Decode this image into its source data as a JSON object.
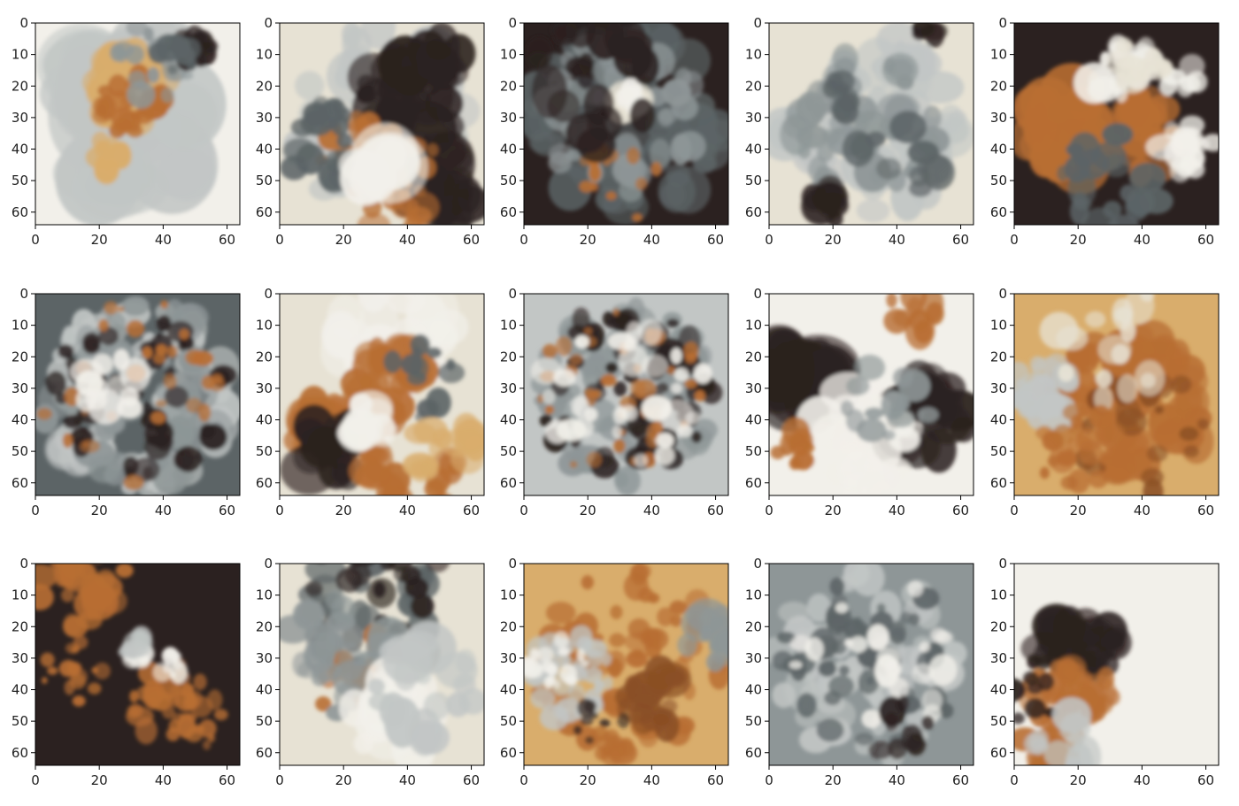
{
  "chart_data": {
    "type": "heatmap",
    "layout": {
      "rows": 3,
      "cols": 5
    },
    "axes": {
      "xlim": [
        0,
        64
      ],
      "ylim": [
        64,
        0
      ],
      "x_ticks": [
        "0",
        "20",
        "40",
        "60"
      ],
      "y_ticks": [
        "0",
        "10",
        "20",
        "30",
        "40",
        "50",
        "60"
      ]
    },
    "palette": {
      "white": "#f2f0ea",
      "cream": "#e7e2d4",
      "light_gray": "#c2c6c5",
      "gray": "#8e9697",
      "slate": "#5c6466",
      "dark": "#2b2120",
      "tan": "#d9ad6c",
      "orange": "#b86e33",
      "brown": "#8a4f25"
    },
    "panels": [
      {
        "index": 1,
        "base": "white",
        "dominant": [
          "white",
          "tan",
          "light_gray"
        ],
        "features": "orange-tan blotch upper center, dark streak top right near (50,8)"
      },
      {
        "index": 2,
        "base": "cream",
        "dominant": [
          "cream",
          "dark",
          "orange"
        ],
        "features": "large dark masses center and right, orange patches lower"
      },
      {
        "index": 3,
        "base": "dark",
        "dominant": [
          "dark",
          "slate",
          "gray"
        ],
        "features": "mostly dark, light patch near (32,25)"
      },
      {
        "index": 4,
        "base": "cream",
        "dominant": [
          "cream",
          "light_gray",
          "gray"
        ],
        "features": "gray dappled pattern, dark spots center-left"
      },
      {
        "index": 5,
        "base": "dark",
        "dominant": [
          "dark",
          "orange",
          "white"
        ],
        "features": "white band near top (25-50,15), orange fill left, white patch right"
      },
      {
        "index": 6,
        "base": "slate",
        "dominant": [
          "slate",
          "dark",
          "light_gray"
        ],
        "features": "dense grid of dark spots with gray and orange speckle"
      },
      {
        "index": 7,
        "base": "cream",
        "dominant": [
          "cream",
          "orange",
          "dark"
        ],
        "features": "orange center and lower left, dark spots lower"
      },
      {
        "index": 8,
        "base": "light_gray",
        "dominant": [
          "dark",
          "gray",
          "white"
        ],
        "features": "regular grid of dark spots with orange speckle"
      },
      {
        "index": 9,
        "base": "white",
        "dominant": [
          "dark",
          "white",
          "orange"
        ],
        "features": "large dark region left half, white patches center and bottom"
      },
      {
        "index": 10,
        "base": "tan",
        "dominant": [
          "tan",
          "orange",
          "light_gray"
        ],
        "features": "warm orange-tan texture throughout"
      },
      {
        "index": 11,
        "base": "dark",
        "dominant": [
          "dark",
          "orange",
          "white"
        ],
        "features": "dark field, orange top band and center-right cluster, small white spots near (32,30)"
      },
      {
        "index": 12,
        "base": "cream",
        "dominant": [
          "cream",
          "slate",
          "dark"
        ],
        "features": "dark spots top rows, light lower half"
      },
      {
        "index": 13,
        "base": "tan",
        "dominant": [
          "tan",
          "orange",
          "light_gray"
        ],
        "features": "tan speckled field with orange patch lower right"
      },
      {
        "index": 14,
        "base": "gray",
        "dominant": [
          "gray",
          "light_gray",
          "slate"
        ],
        "features": "gray dappled lattice"
      },
      {
        "index": 15,
        "base": "white",
        "dominant": [
          "white",
          "dark",
          "orange"
        ],
        "features": "white field with dark blob center-left and orange patch below"
      }
    ]
  }
}
